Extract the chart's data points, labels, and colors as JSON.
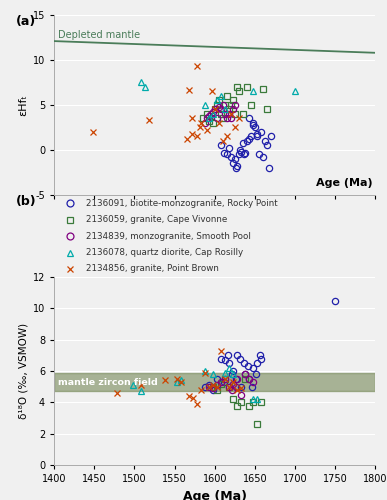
{
  "panel_a": {
    "ylabel": "εHfₜ",
    "xlim": [
      1400,
      1800
    ],
    "ylim": [
      -5,
      15
    ],
    "yticks": [
      -5,
      0,
      5,
      10,
      15
    ],
    "xticks": [
      1400,
      1450,
      1500,
      1550,
      1600,
      1650,
      1700,
      1750,
      1800
    ],
    "depleted_mantle": {
      "x": [
        1400,
        1800
      ],
      "y": [
        12.1,
        10.8
      ],
      "color": "#4a7c59",
      "label": "Depleted mantle"
    },
    "series": [
      {
        "id": "2136091",
        "marker": "o",
        "color": "#2020aa",
        "ages": [
          1608,
          1612,
          1615,
          1618,
          1620,
          1623,
          1625,
          1627,
          1628,
          1630,
          1632,
          1633,
          1635,
          1637,
          1638,
          1640,
          1642,
          1643,
          1645,
          1647,
          1648,
          1650,
          1652,
          1653,
          1655,
          1658,
          1660,
          1663,
          1665,
          1668,
          1670
        ],
        "values": [
          0.5,
          -0.3,
          -0.5,
          0.2,
          -0.8,
          -1.5,
          -1.0,
          -2.0,
          -1.8,
          -0.5,
          0.0,
          -0.2,
          0.8,
          -0.5,
          -0.3,
          1.0,
          3.5,
          1.2,
          1.5,
          2.8,
          3.0,
          2.5,
          1.8,
          1.5,
          -0.5,
          2.0,
          -0.8,
          1.0,
          0.5,
          -2.0,
          1.5
        ]
      },
      {
        "id": "2136059",
        "marker": "s",
        "color": "#3a7a3a",
        "ages": [
          1585,
          1590,
          1593,
          1595,
          1598,
          1600,
          1603,
          1605,
          1608,
          1610,
          1613,
          1615,
          1618,
          1620,
          1623,
          1625,
          1628,
          1630,
          1635,
          1640,
          1645,
          1660,
          1665
        ],
        "values": [
          3.5,
          4.0,
          3.2,
          3.8,
          3.0,
          4.5,
          5.0,
          5.5,
          4.0,
          3.5,
          5.0,
          6.0,
          4.5,
          5.0,
          5.5,
          4.0,
          7.0,
          6.5,
          4.0,
          7.0,
          5.0,
          6.8,
          4.5
        ]
      },
      {
        "id": "2134839",
        "marker": "o",
        "color": "#800080",
        "ages": [
          1588,
          1590,
          1593,
          1595,
          1598,
          1600,
          1603,
          1605,
          1608,
          1610,
          1613,
          1615,
          1618,
          1620,
          1623,
          1625
        ],
        "values": [
          3.0,
          3.5,
          3.8,
          4.0,
          4.2,
          4.5,
          3.5,
          4.8,
          4.5,
          5.0,
          4.0,
          3.5,
          4.0,
          3.5,
          4.5,
          5.0
        ]
      },
      {
        "id": "2136078",
        "marker": "^",
        "color": "#00aaaa",
        "ages": [
          1508,
          1513,
          1588,
          1593,
          1598,
          1603,
          1608,
          1613,
          1648,
          1700
        ],
        "values": [
          7.5,
          7.0,
          5.0,
          3.5,
          4.0,
          5.5,
          6.0,
          4.5,
          6.5,
          6.5
        ]
      },
      {
        "id": "2134856",
        "marker": "x",
        "color": "#cc4400",
        "ages": [
          1448,
          1518,
          1568,
          1572,
          1578,
          1582,
          1565,
          1572,
          1578,
          1583,
          1590,
          1596,
          1600,
          1605,
          1610,
          1615,
          1620,
          1625,
          1630
        ],
        "values": [
          2.0,
          3.3,
          6.7,
          3.5,
          1.5,
          2.5,
          1.2,
          1.8,
          9.3,
          3.0,
          2.2,
          6.5,
          4.5,
          3.0,
          1.0,
          1.5,
          4.0,
          2.5,
          3.5
        ]
      }
    ]
  },
  "panel_b": {
    "ylabel": "δ¹⁸O (‰, VSMOW)",
    "xlabel": "Age (Ma)",
    "xlim": [
      1400,
      1800
    ],
    "ylim": [
      0,
      12
    ],
    "yticks": [
      0,
      2,
      4,
      6,
      8,
      10,
      12
    ],
    "xticks": [
      1400,
      1450,
      1500,
      1550,
      1600,
      1650,
      1700,
      1750,
      1800
    ],
    "mantle_band": {
      "ymin": 4.7,
      "ymax": 5.9,
      "color": "#6b7f4a",
      "alpha": 0.55,
      "label": "mantle zircon field"
    },
    "series": [
      {
        "id": "2136091",
        "marker": "o",
        "color": "#2020aa",
        "ages": [
          1588,
          1593,
          1598,
          1603,
          1608,
          1611,
          1613,
          1616,
          1618,
          1621,
          1623,
          1626,
          1628,
          1631,
          1633,
          1636,
          1638,
          1641,
          1643,
          1646,
          1648,
          1651,
          1653,
          1656,
          1658,
          1750
        ],
        "values": [
          5.0,
          5.1,
          4.8,
          5.5,
          6.8,
          5.3,
          6.7,
          7.0,
          6.5,
          5.8,
          6.0,
          5.5,
          7.0,
          6.8,
          5.0,
          6.5,
          5.8,
          6.3,
          5.5,
          5.0,
          6.2,
          5.8,
          6.5,
          7.0,
          6.8,
          10.5
        ]
      },
      {
        "id": "2136059",
        "marker": "s",
        "color": "#3a7a3a",
        "ages": [
          1598,
          1603,
          1608,
          1613,
          1618,
          1623,
          1628,
          1633,
          1638,
          1643,
          1648,
          1653,
          1658
        ],
        "values": [
          5.0,
          4.8,
          5.2,
          5.5,
          5.0,
          4.2,
          3.8,
          4.0,
          5.5,
          3.8,
          4.0,
          2.6,
          4.0
        ]
      },
      {
        "id": "2134839",
        "marker": "o",
        "color": "#800080",
        "ages": [
          1593,
          1598,
          1603,
          1608,
          1613,
          1618,
          1621,
          1623,
          1626,
          1628,
          1633,
          1638,
          1643,
          1648
        ],
        "values": [
          5.0,
          4.9,
          5.1,
          5.3,
          5.5,
          5.0,
          4.8,
          5.2,
          5.0,
          5.5,
          4.5,
          5.8,
          5.5,
          5.3
        ]
      },
      {
        "id": "2136078",
        "marker": "^",
        "color": "#00aaaa",
        "ages": [
          1498,
          1508,
          1553,
          1558,
          1588,
          1598,
          1613,
          1618,
          1623,
          1648,
          1653
        ],
        "values": [
          5.1,
          4.7,
          5.3,
          5.4,
          6.0,
          5.8,
          5.9,
          6.2,
          5.8,
          4.2,
          4.2
        ]
      },
      {
        "id": "2134856",
        "marker": "x",
        "color": "#cc4400",
        "ages": [
          1478,
          1508,
          1538,
          1553,
          1558,
          1568,
          1573,
          1578,
          1583,
          1588,
          1593,
          1598,
          1603,
          1608,
          1613,
          1618,
          1623,
          1628,
          1633
        ],
        "values": [
          4.6,
          5.1,
          5.4,
          5.5,
          5.3,
          4.4,
          4.3,
          3.9,
          4.8,
          5.9,
          5.0,
          5.1,
          5.0,
          7.3,
          5.5,
          5.0,
          5.3,
          4.8,
          4.9
        ]
      }
    ]
  },
  "legend_entries": [
    {
      "label": "2136091, biotite-monzogranite, Rocky Point",
      "marker": "o",
      "color": "#2020aa"
    },
    {
      "label": "2136059, granite, Cape Vivonne",
      "marker": "s",
      "color": "#3a7a3a"
    },
    {
      "label": "2134839, monzogranite, Smooth Pool",
      "marker": "o",
      "color": "#800080"
    },
    {
      "label": "2136078, quartz diorite, Cap Rosilly",
      "marker": "^",
      "color": "#00aaaa"
    },
    {
      "label": "2134856, granite, Point Brown",
      "marker": "x",
      "color": "#cc4400"
    }
  ],
  "bg_color": "#f0f0f0"
}
